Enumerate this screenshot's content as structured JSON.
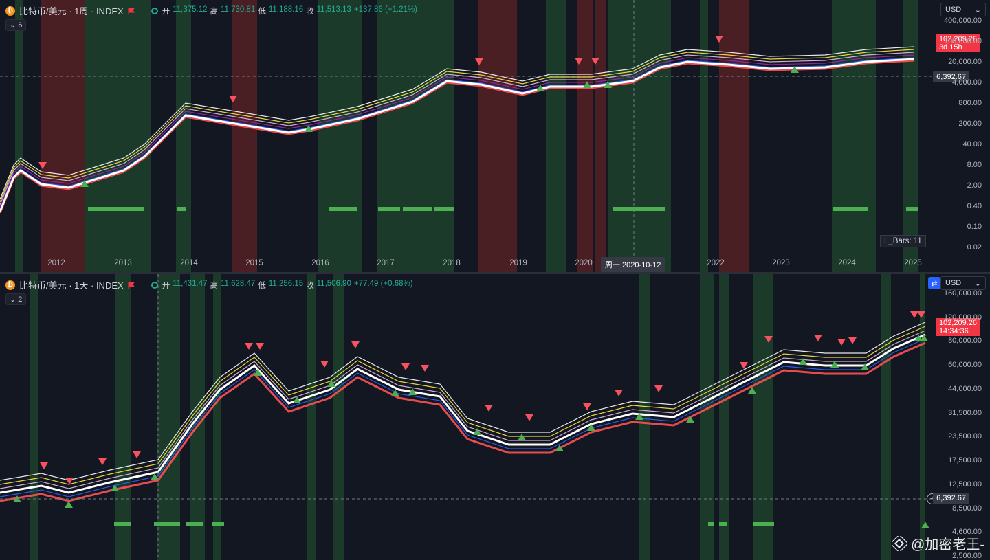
{
  "top": {
    "symbol": "比特币/美元 · 1周 · INDEX",
    "ohlc": [
      {
        "k": "开",
        "v": "11,375.12"
      },
      {
        "k": "高",
        "v": "11,730.81"
      },
      {
        "k": "低",
        "v": "11,188.16"
      },
      {
        "k": "收",
        "v": "11,513.13"
      },
      {
        "k": "",
        "v": "+137.86 (+1.21%)"
      }
    ],
    "collapse_label": "6",
    "currency": "USD",
    "last_price": "102,209.26",
    "countdown": "3d 15h",
    "crosshair_price": "6,392.67",
    "crosshair_date": "周一  2020-10-12",
    "lbars": "L_Bars: 11",
    "y_ticks": [
      "400,000.00",
      "100,000.00",
      "20,000.00",
      "4,000.00",
      "800.00",
      "200.00",
      "40.00",
      "8.00",
      "2.00",
      "0.40",
      "0.10",
      "0.02"
    ],
    "x_ticks": [
      "2012",
      "2013",
      "2014",
      "2015",
      "2016",
      "2017",
      "2018",
      "2019",
      "2020",
      "2022",
      "2023",
      "2024",
      "2025"
    ]
  },
  "bottom": {
    "symbol": "比特币/美元 · 1天 · INDEX",
    "ohlc": [
      {
        "k": "开",
        "v": "11,431.47"
      },
      {
        "k": "高",
        "v": "11,628.47"
      },
      {
        "k": "低",
        "v": "11,256.15"
      },
      {
        "k": "收",
        "v": "11,506.90"
      },
      {
        "k": "",
        "v": "+77.49 (+0.68%)"
      }
    ],
    "collapse_label": "2",
    "currency": "USD",
    "last_price": "102,209.26",
    "countdown": "14:34:36",
    "crosshair_price": "6,392.67",
    "y_ticks": [
      "160,000.00",
      "120,000.00",
      "80,000.00",
      "60,000.00",
      "44,000.00",
      "31,500.00",
      "23,500.00",
      "17,500.00",
      "12,500.00",
      "8,500.00",
      "4,600.00",
      "2,500.00"
    ]
  },
  "watermark": "@加密老王-",
  "colors": {
    "bg": "#131722",
    "up": "#22ab94",
    "down": "#f23645",
    "green_marker": "#4caf50",
    "red_marker": "#f7525f"
  }
}
